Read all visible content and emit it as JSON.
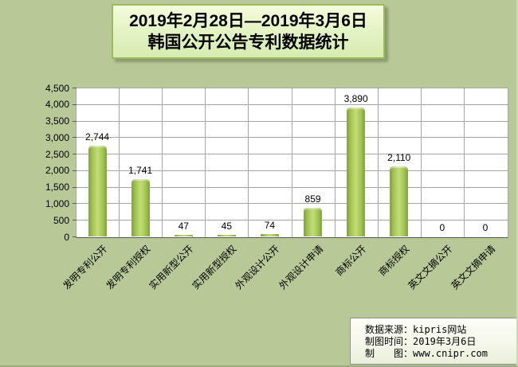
{
  "title": {
    "line1": "2019年2月28日—2019年3月6日",
    "line2": "韩国公开公告专利数据统计"
  },
  "footer": {
    "source_line": "数据来源：kipris网站",
    "date_line": "制图时间：2019年3月6日",
    "maker_line": "制　　图：www.cnipr.com"
  },
  "colors": {
    "page_background": "#b8c896",
    "plot_background": "#ffffff",
    "gridline": "#a6a6a6",
    "axis_line": "#595959",
    "bar_edge": "#7e9e3c",
    "bar_center": "#c3dc7a",
    "title_border": "#9cba58",
    "title_fill_top": "#f3fbdc",
    "title_fill_bottom": "#d6ecb0"
  },
  "chart_data": {
    "type": "bar",
    "title": "2019年2月28日—2019年3月6日 韩国公开公告专利数据统计",
    "categories": [
      "发明专利公开",
      "发明专利授权",
      "实用新型公开",
      "实用新型授权",
      "外观设计公开",
      "外观设计申请",
      "商标公开",
      "商标授权",
      "英文文摘公开",
      "英文文摘申请"
    ],
    "values": [
      2744,
      1741,
      47,
      45,
      74,
      859,
      3890,
      2110,
      0,
      0
    ],
    "data_labels": [
      "2,744",
      "1,741",
      "47",
      "45",
      "74",
      "859",
      "3,890",
      "2,110",
      "0",
      "0"
    ],
    "xlabel": "",
    "ylabel": "",
    "ylim": [
      0,
      4500
    ],
    "ytick_step": 500,
    "ytick_labels": [
      "0",
      "500",
      "1,000",
      "1,500",
      "2,000",
      "2,500",
      "3,000",
      "3,500",
      "4,000",
      "4,500"
    ],
    "grid": true,
    "legend": false,
    "bar_orientation": "vertical",
    "x_label_rotation_deg": 45
  }
}
